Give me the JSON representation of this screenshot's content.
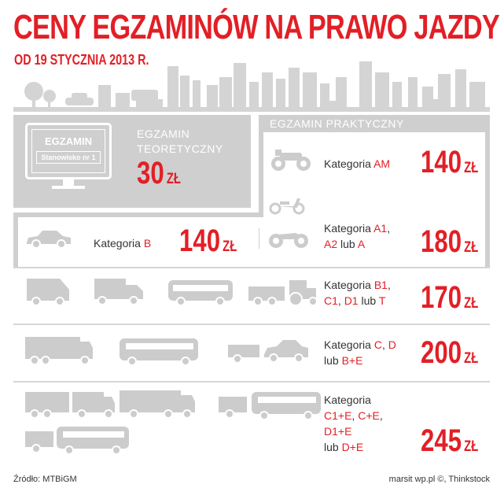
{
  "header": {
    "title": "CENY EGZAMINÓW NA PRAWO JAZDY",
    "subtitle": "OD 19 STYCZNIA 2013 R."
  },
  "theory": {
    "monitor_line1": "EGZAMIN",
    "monitor_line2": "Stanowisko nr 1",
    "label_line1": "EGZAMIN",
    "label_line2": "TEORETYCZNY",
    "price": "30",
    "currency": "ZŁ"
  },
  "practical": {
    "heading": "EGZAMIN PRAKTYCZNY",
    "rows": [
      {
        "prefix": "Kategoria",
        "cat1": "AM",
        "price": "140",
        "currency": "ZŁ"
      },
      {
        "prefix": "Kategoria",
        "cat1": "A1",
        "sep1": ",",
        "cat2": "A2",
        "mid": "lub",
        "cat3": "A",
        "price": "180",
        "currency": "ZŁ"
      },
      {
        "prefix": "Kategoria",
        "cat1": "B1",
        "sep1": ",",
        "cat2": "C1",
        "sep2": ",",
        "cat3": "D1",
        "mid": "lub",
        "cat4": "T",
        "price": "170",
        "currency": "ZŁ"
      },
      {
        "prefix": "Kategoria",
        "cat1": "C",
        "sep1": ",",
        "cat2": "D",
        "mid": "lub",
        "cat3": "B+E",
        "price": "200",
        "currency": "ZŁ"
      },
      {
        "prefix": "Kategoria",
        "cat1": "C1+E",
        "sep1": ",",
        "cat2": "C+E",
        "sep2": ",",
        "cat3": "D1+E",
        "mid": "lub",
        "cat4": "D+E",
        "price": "245",
        "currency": "ZŁ"
      }
    ],
    "cat_b": {
      "prefix": "Kategoria",
      "cat": "B",
      "price": "140",
      "currency": "ZŁ"
    }
  },
  "footer": {
    "source": "Źródło: MTBiGM",
    "credit": "marsit wp.pl ©, Thinkstock"
  },
  "colors": {
    "accent": "#e21f26",
    "panel": "#cfcfcf",
    "icon": "#cccccc"
  }
}
